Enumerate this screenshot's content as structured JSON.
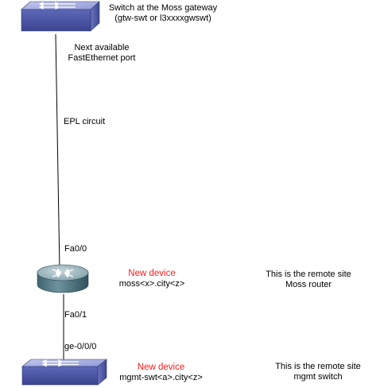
{
  "top_switch": {
    "icon": "network-switch-icon",
    "title": "Switch at the Moss gateway",
    "subtitle": "(gtw-swt or l3xxxxgwswt)",
    "port_line1": "Next available",
    "port_line2": "FastEthernet port"
  },
  "link_upper": {
    "label": "EPL circuit"
  },
  "router": {
    "icon": "router-icon",
    "port_top": "Fa0/0",
    "port_bottom": "Fa0/1",
    "status": "New device",
    "hostname": "moss<x>.city<z>",
    "note_line1": "This is the remote site",
    "note_line2": "Moss router"
  },
  "bottom_switch": {
    "icon": "network-switch-icon",
    "port": "ge-0/0/0",
    "status": "New device",
    "hostname": "mgmt-swt<a>.city<z>",
    "note_line1": "This is the remote site",
    "note_line2": "mgmt switch"
  },
  "colors": {
    "switch_top": "#aab2e4",
    "switch_front": "#4d58a8",
    "router_top": "#9bb3bd",
    "router_side": "#4f7784",
    "new_device": "#ff1a1a"
  }
}
